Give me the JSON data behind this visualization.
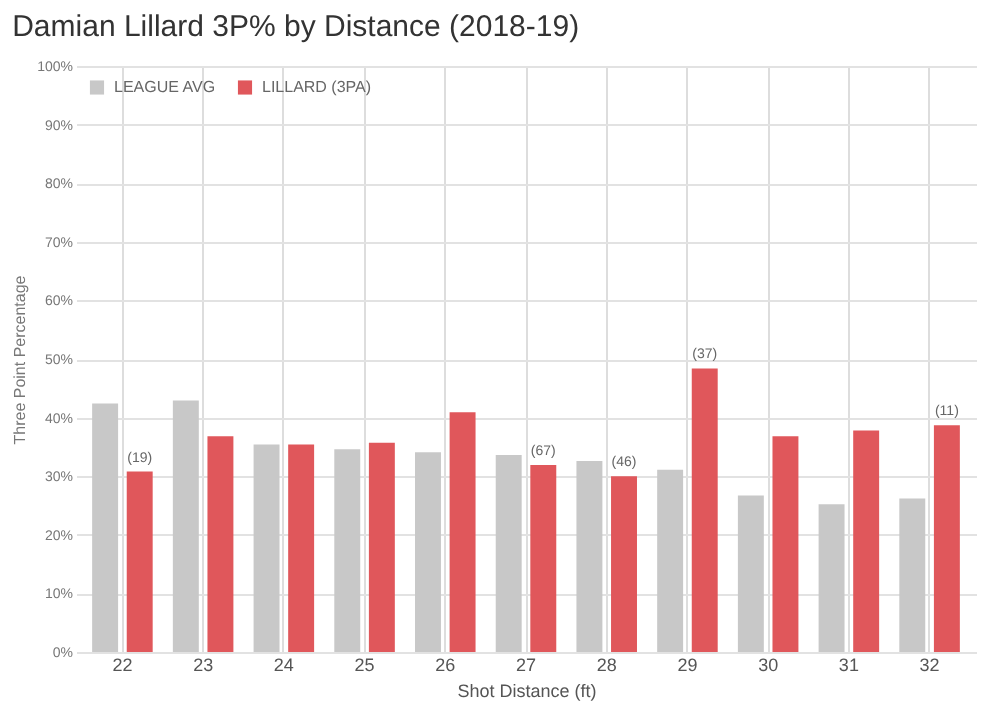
{
  "chart_data": {
    "type": "bar",
    "title": "Damian Lillard 3P% by Distance (2018-19)",
    "xlabel": "Shot Distance (ft)",
    "ylabel": "Three Point Percentage",
    "categories": [
      "22",
      "23",
      "24",
      "25",
      "26",
      "27",
      "28",
      "29",
      "30",
      "31",
      "32"
    ],
    "series": [
      {
        "name": "LEAGUE AVG",
        "color": "#c8c8c8",
        "values": [
          42.4,
          42.9,
          35.4,
          34.6,
          34.1,
          33.6,
          32.6,
          31.1,
          26.7,
          25.2,
          26.2
        ]
      },
      {
        "name": "LILLARD (3PA)",
        "color": "#e0575b",
        "values": [
          30.8,
          36.8,
          35.4,
          35.7,
          40.9,
          31.9,
          30.0,
          48.4,
          36.8,
          37.8,
          38.7
        ]
      }
    ],
    "ylim": [
      0,
      100
    ],
    "yticks": [
      {
        "value": 0,
        "label": "0%"
      },
      {
        "value": 10,
        "label": "10%"
      },
      {
        "value": 20,
        "label": "20%"
      },
      {
        "value": 30,
        "label": "30%"
      },
      {
        "value": 40,
        "label": "40%"
      },
      {
        "value": 50,
        "label": "50%"
      },
      {
        "value": 60,
        "label": "60%"
      },
      {
        "value": 70,
        "label": "70%"
      },
      {
        "value": 80,
        "label": "80%"
      },
      {
        "value": 90,
        "label": "90%"
      },
      {
        "value": 100,
        "label": "100%"
      }
    ],
    "grid": true,
    "legend": "top left",
    "annotations": [
      {
        "text": "(19)",
        "x": "22",
        "y": 30.8
      },
      {
        "text": "(67)",
        "x": "27",
        "y": 31.9
      },
      {
        "text": "(46)",
        "x": "28",
        "y": 30.0
      },
      {
        "text": "(37)",
        "x": "29",
        "y": 48.4
      },
      {
        "text": "(11)",
        "x": "32",
        "y": 38.7
      }
    ]
  }
}
